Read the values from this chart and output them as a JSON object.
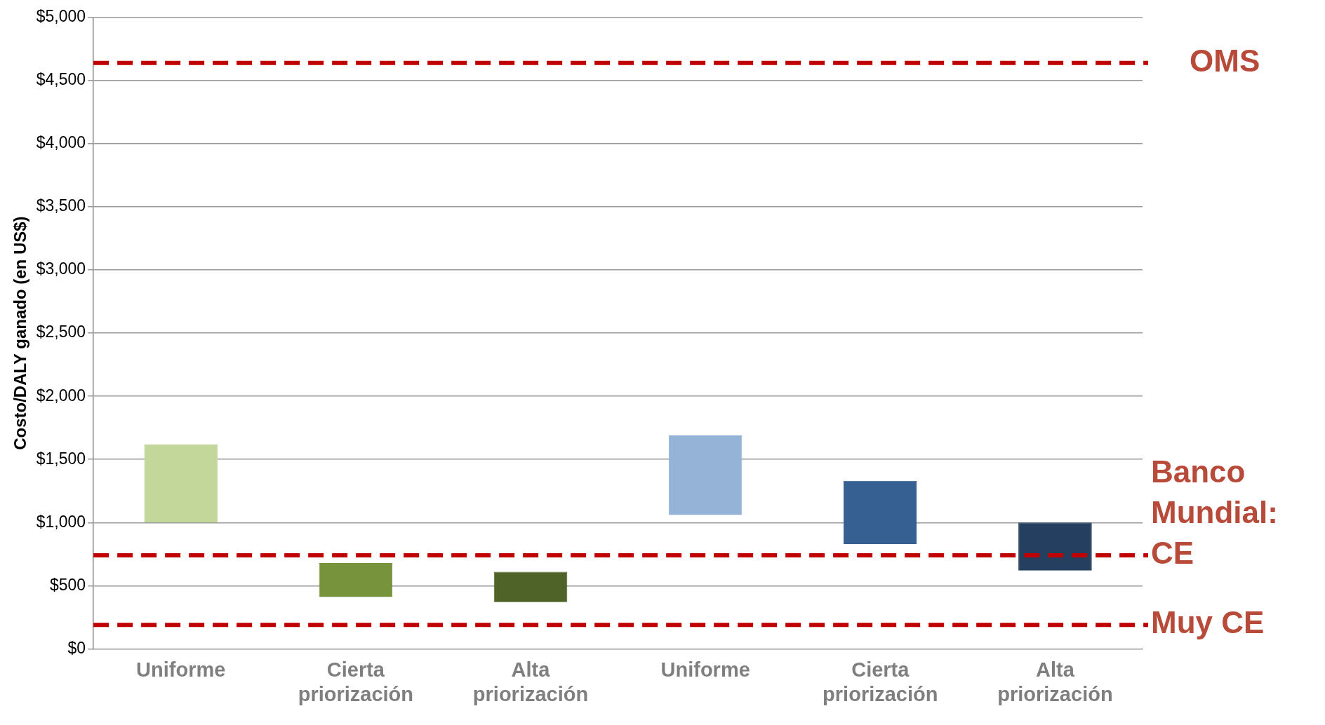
{
  "chart_data": {
    "type": "bar",
    "ylabel": "Costo/DALY ganado (en US$)",
    "categories": [
      "Uniforme",
      "Cierta priorización",
      "Alta priorización",
      "Uniforme",
      "Cierta priorización",
      "Alta priorización"
    ],
    "base": [
      1000,
      410,
      370,
      1060,
      830,
      620
    ],
    "values": [
      620,
      270,
      240,
      630,
      500,
      380
    ],
    "colors": [
      "#c4d79b",
      "#77933c",
      "#4f6228",
      "#95b3d7",
      "#366092",
      "#243f60"
    ],
    "ylim": [
      0,
      5000
    ],
    "yticks": [
      {
        "value": 0,
        "label": "$0"
      },
      {
        "value": 500,
        "label": "$500"
      },
      {
        "value": 1000,
        "label": "$1,000"
      },
      {
        "value": 1500,
        "label": "$1,500"
      },
      {
        "value": 2000,
        "label": "$2,000"
      },
      {
        "value": 2500,
        "label": "$2,500"
      },
      {
        "value": 3000,
        "label": "$3,000"
      },
      {
        "value": 3500,
        "label": "$3,500"
      },
      {
        "value": 4000,
        "label": "$4,000"
      },
      {
        "value": 4500,
        "label": "$4,500"
      },
      {
        "value": 5000,
        "label": "$5,000"
      }
    ],
    "grid": "y",
    "legend": false,
    "ref_lines": [
      {
        "axis": "y",
        "value": 4640,
        "label": "OMS",
        "color": "#c00000",
        "line_style": "dashed"
      },
      {
        "axis": "y",
        "value": 740,
        "label": "Banco Mundial: CE",
        "color": "#c00000",
        "line_style": "dashed"
      },
      {
        "axis": "y",
        "value": 190,
        "label": "Muy CE",
        "color": "#c00000",
        "line_style": "dashed"
      }
    ]
  }
}
